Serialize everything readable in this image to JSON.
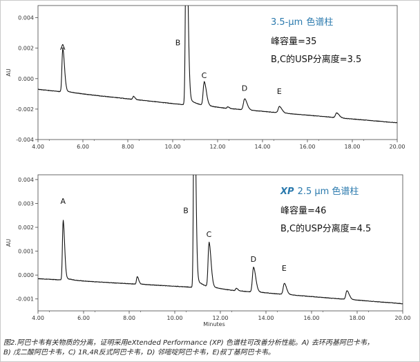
{
  "chart_data": [
    {
      "type": "line",
      "header_value": "3.5-µm",
      "header_text": "色谱柱",
      "annotation_line1": "峰容量=35",
      "annotation_line2": "B,C的USP分离度=3.5",
      "ylabel": "AU",
      "xlabel": "",
      "xlim": [
        4.0,
        20.0
      ],
      "ylim": [
        -0.004,
        0.0048
      ],
      "x_ticks": [
        "4.00",
        "6.00",
        "8.00",
        "10.00",
        "12.00",
        "14.00",
        "16.00",
        "18.00",
        "20.00"
      ],
      "y_ticks": [
        {
          "value": -0.004,
          "label": "-0.004"
        },
        {
          "value": -0.002,
          "label": "-0.002"
        },
        {
          "value": 0.0,
          "label": "0.000"
        },
        {
          "value": 0.002,
          "label": "0.002"
        },
        {
          "value": 0.004,
          "label": "0.004"
        }
      ],
      "baseline": [
        [
          4.0,
          -0.0007
        ],
        [
          10.4,
          -0.0017
        ],
        [
          20.0,
          -0.0029
        ]
      ],
      "peaks": [
        {
          "label": "A",
          "x": 5.1,
          "height": 0.00275,
          "width": 0.035
        },
        {
          "label": "",
          "x": 8.25,
          "height": 0.0002,
          "width": 0.03
        },
        {
          "label": "B",
          "x": 10.6,
          "height": 0.012,
          "width": 0.035
        },
        {
          "label": "C",
          "x": 11.4,
          "height": 0.0015,
          "width": 0.045
        },
        {
          "label": "",
          "x": 12.45,
          "height": 0.0001,
          "width": 0.03
        },
        {
          "label": "D",
          "x": 13.2,
          "height": 0.0007,
          "width": 0.05
        },
        {
          "label": "E",
          "x": 14.75,
          "height": 0.0004,
          "width": 0.05
        },
        {
          "label": "",
          "x": 17.3,
          "height": 0.0003,
          "width": 0.05
        }
      ],
      "peak_label_y": {
        "A": 0.0019,
        "B": 0.0022,
        "C": 3e-05,
        "D": -0.0008,
        "E": -0.001
      }
    },
    {
      "type": "line",
      "header_value": "XP",
      "header_text": "2.5 µm 色谱柱",
      "annotation_line1": "峰容量=46",
      "annotation_line2": "B,C的USP分离度=4.5",
      "ylabel": "AU",
      "xlabel": "Minutes",
      "xlim": [
        4.0,
        20.0
      ],
      "ylim": [
        -0.0015,
        0.0042
      ],
      "x_ticks": [
        "4.00",
        "6.00",
        "8.00",
        "10.00",
        "12.00",
        "14.00",
        "16.00",
        "18.00",
        "20.00"
      ],
      "y_ticks": [
        {
          "value": -0.001,
          "label": "-0.001"
        },
        {
          "value": 0.0,
          "label": "0.000"
        },
        {
          "value": 0.001,
          "label": "0.001"
        },
        {
          "value": 0.002,
          "label": "0.002"
        },
        {
          "value": 0.003,
          "label": "0.003"
        },
        {
          "value": 0.004,
          "label": "0.004"
        }
      ],
      "baseline": [
        [
          4.0,
          -0.00015
        ],
        [
          10.6,
          -0.0005
        ],
        [
          20.0,
          -0.0012
        ]
      ],
      "peaks": [
        {
          "label": "A",
          "x": 5.1,
          "height": 0.0024,
          "width": 0.03
        },
        {
          "label": "",
          "x": 8.35,
          "height": 0.0003,
          "width": 0.03
        },
        {
          "label": "B",
          "x": 10.85,
          "height": 0.009,
          "width": 0.03
        },
        {
          "label": "C",
          "x": 11.5,
          "height": 0.0018,
          "width": 0.04
        },
        {
          "label": "",
          "x": 12.7,
          "height": 0.0001,
          "width": 0.03
        },
        {
          "label": "D",
          "x": 13.45,
          "height": 0.001,
          "width": 0.045
        },
        {
          "label": "E",
          "x": 14.8,
          "height": 0.00045,
          "width": 0.045
        },
        {
          "label": "",
          "x": 17.55,
          "height": 0.00035,
          "width": 0.045
        }
      ],
      "peak_label_y": {
        "A": 0.00298,
        "B": 0.0026,
        "C": 0.0016,
        "D": 0.00055,
        "E": 0.00018
      }
    }
  ],
  "caption": {
    "line1": "图2.阿巴卡韦有关物质的分离，证明采用eXtended Performance (XP) 色谱柱可改善分析性能。A) 去环丙基阿巴卡韦，",
    "line2": "B) 戊二酸阿巴卡韦，C) 1R,4R反式阿巴卡韦，D) 邻嘧啶阿巴卡韦，E)叔丁基阿巴卡韦。"
  }
}
